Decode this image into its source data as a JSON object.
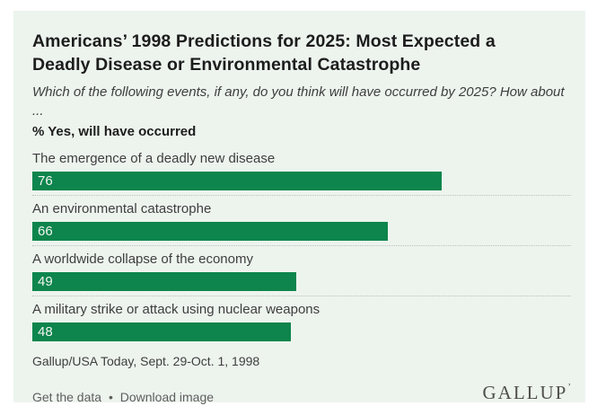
{
  "card_background": "#edf4ee",
  "header": {
    "title": "Americans’ 1998 Predictions for 2025: Most Expected a Deadly Disease or Environmental Catastrophe",
    "subtitle": "Which of the following events, if any, do you think will have occurred by 2025? How about ...",
    "measure_label": "% Yes, will have occurred"
  },
  "chart_data": {
    "type": "bar",
    "orientation": "horizontal",
    "title": "Americans’ 1998 Predictions for 2025: Most Expected a Deadly Disease or Environmental Catastrophe",
    "subtitle": "Which of the following events, if any, do you think will have occurred by 2025? How about ...",
    "ylabel": "% Yes, will have occurred",
    "categories": [
      "The emergence of a deadly new disease",
      "An environmental catastrophe",
      "A worldwide collapse of the economy",
      "A military strike or attack using nuclear weapons"
    ],
    "values": [
      76,
      66,
      49,
      48
    ],
    "xlim": [
      0,
      100
    ],
    "grid": false,
    "value_labels": "inside-left",
    "bar_color": "#0d854c",
    "row_separator": "dotted"
  },
  "source": "Gallup/USA Today, Sept. 29-Oct. 1, 1998",
  "footer": {
    "get_data_label": "Get the data",
    "separator": "•",
    "download_label": "Download image",
    "logo_text": "GALLUP",
    "logo_mark": "’"
  }
}
